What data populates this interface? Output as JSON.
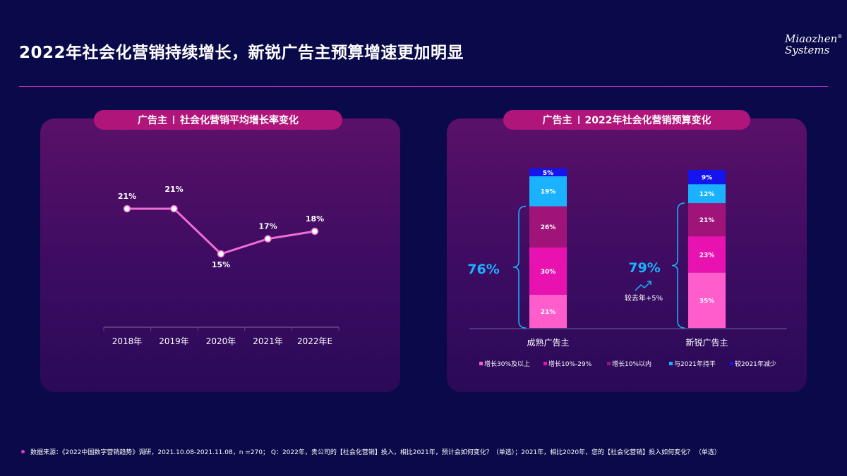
{
  "page": {
    "title": "2022年社会化营销持续增长，新锐广告主预算增速更加明显",
    "logo_line1": "Miaozhen",
    "logo_mark": "®",
    "logo_line2": "Systems",
    "footnote": "数据来源：《2022中国数字营销趋势》调研，2021.10.08-2021.11.08，n =270；  Q：2022年，贵公司的【社会化营销】投入，相比2021年，预计会如何变化？（单选）；2021年，相比2020年，您的【社会化营销】投入如何变化？ （单选）"
  },
  "left_panel": {
    "title_a": "广告主",
    "title_b": "社会化营销平均增长率变化"
  },
  "right_panel": {
    "title_a": "广告主",
    "title_b": "2022年社会化营销预算变化",
    "brace_left_label": "76%",
    "brace_right_label": "79%",
    "delta_label": "较去年+5%"
  },
  "colors": {
    "line": "#f06cd6",
    "seg1": "#ff5ccc",
    "seg2": "#e812b0",
    "seg3": "#a0147a",
    "seg4": "#1ab2ff",
    "seg5": "#1414ee",
    "brace": "#1ab2ff"
  },
  "chart_data": [
    {
      "type": "line",
      "x": [
        "2018年",
        "2019年",
        "2020年",
        "2021年",
        "2022年E"
      ],
      "values": [
        21,
        21,
        15,
        17,
        18
      ],
      "data_labels": [
        "21%",
        "21%",
        "15%",
        "17%",
        "18%"
      ],
      "ylim": [
        0,
        30
      ],
      "grid": false
    },
    {
      "type": "bar",
      "stacked": true,
      "categories": [
        "成熟广告主",
        "新锐广告主"
      ],
      "series": [
        {
          "name": "增长30%及以上",
          "values": [
            21,
            35
          ]
        },
        {
          "name": "增长10%-29%",
          "values": [
            30,
            23
          ]
        },
        {
          "name": "增长10%以内",
          "values": [
            26,
            21
          ]
        },
        {
          "name": "与2021年持平",
          "values": [
            19,
            12
          ]
        },
        {
          "name": "较2021年减少",
          "values": [
            5,
            9
          ]
        }
      ],
      "legend": "bottom"
    }
  ]
}
